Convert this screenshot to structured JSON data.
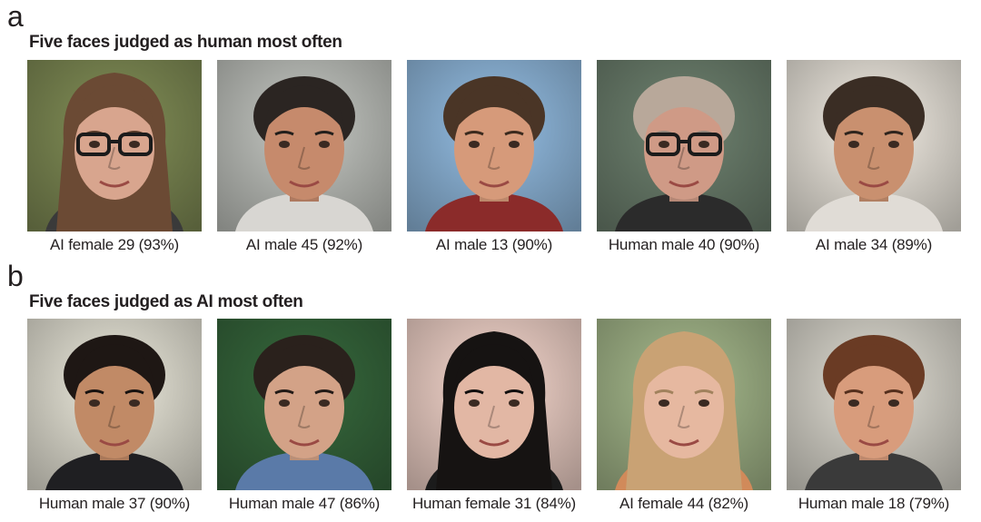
{
  "panel_a": {
    "letter": "a",
    "title": "Five faces judged as human most often",
    "faces": [
      {
        "caption": "AI female 29 (93%)",
        "bg": "#6f7a4a",
        "skin": "#d8a58e",
        "hair": "#6b4a34",
        "shirt": "#3a3a3a",
        "glasses": true,
        "icon": "face-female-glasses-icon"
      },
      {
        "caption": "AI male 45 (92%)",
        "bg": "#a8aaa6",
        "skin": "#c68a6c",
        "hair": "#2b2522",
        "shirt": "#d8d6d2",
        "glasses": false,
        "icon": "face-male-icon"
      },
      {
        "caption": "AI male 13 (90%)",
        "bg": "#7ea2c2",
        "skin": "#d69a7a",
        "hair": "#4a3526",
        "shirt": "#8b2b2a",
        "glasses": false,
        "icon": "face-male-icon"
      },
      {
        "caption": "Human male 40 (90%)",
        "bg": "#5f7060",
        "skin": "#cf9a86",
        "hair": "#b8a89a",
        "shirt": "#2b2b2b",
        "glasses": true,
        "icon": "face-older-male-glasses-icon"
      },
      {
        "caption": "AI male 34 (89%)",
        "bg": "#cfcac2",
        "skin": "#c9906f",
        "hair": "#3a2d24",
        "shirt": "#e0dcd6",
        "glasses": false,
        "icon": "face-male-icon"
      }
    ]
  },
  "panel_b": {
    "letter": "b",
    "title": "Five faces judged as AI most often",
    "faces": [
      {
        "caption": "Human male 37 (90%)",
        "bg": "#c9c7bb",
        "skin": "#c18a66",
        "hair": "#1e1714",
        "shirt": "#1f1f22",
        "glasses": false,
        "icon": "face-male-icon"
      },
      {
        "caption": "Human male 47 (86%)",
        "bg": "#2f5a34",
        "skin": "#d3a287",
        "hair": "#2a211c",
        "shirt": "#5a7aa8",
        "glasses": false,
        "icon": "face-male-beard-icon"
      },
      {
        "caption": "Human female 31 (84%)",
        "bg": "#d3b9b0",
        "skin": "#e2b7a4",
        "hair": "#161312",
        "shirt": "#1b1b1b",
        "glasses": false,
        "icon": "face-female-icon"
      },
      {
        "caption": "AI female 44 (82%)",
        "bg": "#8fa079",
        "skin": "#e6b8a0",
        "hair": "#c9a274",
        "shirt": "#d18a5a",
        "glasses": false,
        "icon": "face-female-icon"
      },
      {
        "caption": "Human male 18 (79%)",
        "bg": "#bfbcb4",
        "skin": "#d89c7c",
        "hair": "#6a3b24",
        "shirt": "#3a3a3a",
        "glasses": false,
        "icon": "face-male-smiling-icon"
      }
    ]
  }
}
